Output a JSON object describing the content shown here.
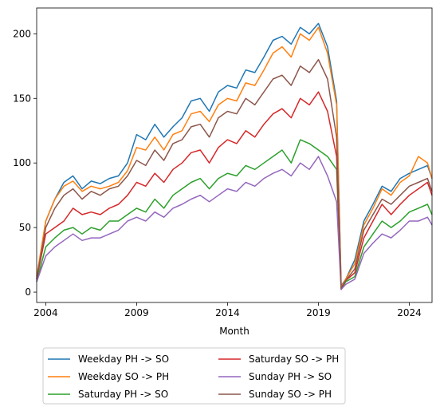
{
  "chart_data": {
    "type": "line",
    "title": "",
    "xlabel": "Month",
    "ylabel": "",
    "xlim": [
      2003.5,
      2025.25
    ],
    "ylim": [
      -8,
      220
    ],
    "x_ticks": [
      {
        "value": 2004,
        "label": "2004"
      },
      {
        "value": 2009,
        "label": "2009"
      },
      {
        "value": 2014,
        "label": "2014"
      },
      {
        "value": 2019,
        "label": "2019"
      },
      {
        "value": 2024,
        "label": "2024"
      }
    ],
    "y_ticks": [
      {
        "value": 0,
        "label": "0"
      },
      {
        "value": 50,
        "label": "50"
      },
      {
        "value": 100,
        "label": "100"
      },
      {
        "value": 150,
        "label": "150"
      },
      {
        "value": 200,
        "label": "200"
      }
    ],
    "legend": {
      "placement": "below-left",
      "columns": 2
    },
    "x": [
      2003.5,
      2004.0,
      2004.5,
      2005.0,
      2005.5,
      2006.0,
      2006.5,
      2007.0,
      2007.5,
      2008.0,
      2008.5,
      2009.0,
      2009.5,
      2010.0,
      2010.5,
      2011.0,
      2011.5,
      2012.0,
      2012.5,
      2013.0,
      2013.5,
      2014.0,
      2014.5,
      2015.0,
      2015.5,
      2016.0,
      2016.5,
      2017.0,
      2017.5,
      2018.0,
      2018.5,
      2019.0,
      2019.5,
      2020.0,
      2020.25,
      2020.5,
      2021.0,
      2021.5,
      2022.0,
      2022.5,
      2023.0,
      2023.5,
      2024.0,
      2024.5,
      2025.0,
      2025.25
    ],
    "series": [
      {
        "name": "Weekday PH -> SO",
        "color": "#1f77b4",
        "values": [
          10,
          55,
          72,
          85,
          90,
          80,
          86,
          84,
          88,
          90,
          100,
          122,
          118,
          130,
          120,
          128,
          135,
          148,
          150,
          140,
          155,
          160,
          158,
          172,
          170,
          182,
          195,
          198,
          192,
          205,
          200,
          208,
          190,
          148,
          5,
          10,
          25,
          55,
          68,
          82,
          78,
          88,
          92,
          95,
          98,
          88
        ]
      },
      {
        "name": "Weekday SO -> PH",
        "color": "#ff7f0e",
        "values": [
          12,
          55,
          72,
          82,
          86,
          78,
          82,
          80,
          82,
          85,
          94,
          112,
          110,
          120,
          110,
          122,
          125,
          138,
          140,
          132,
          145,
          150,
          148,
          162,
          160,
          172,
          185,
          190,
          182,
          200,
          195,
          205,
          185,
          145,
          4,
          10,
          22,
          52,
          65,
          80,
          75,
          85,
          90,
          105,
          100,
          88
        ]
      },
      {
        "name": "Saturday PH -> SO",
        "color": "#2ca02c",
        "values": [
          8,
          35,
          42,
          48,
          50,
          45,
          50,
          48,
          55,
          55,
          60,
          65,
          62,
          72,
          65,
          75,
          80,
          85,
          88,
          80,
          88,
          92,
          90,
          98,
          95,
          100,
          105,
          110,
          100,
          118,
          115,
          110,
          105,
          95,
          2,
          8,
          12,
          35,
          45,
          55,
          50,
          55,
          62,
          65,
          68,
          60
        ]
      },
      {
        "name": "Saturday SO -> PH",
        "color": "#d62728",
        "values": [
          10,
          45,
          50,
          55,
          65,
          60,
          62,
          60,
          65,
          68,
          75,
          85,
          82,
          92,
          85,
          95,
          100,
          108,
          110,
          100,
          112,
          118,
          115,
          125,
          120,
          130,
          138,
          142,
          135,
          150,
          145,
          155,
          140,
          105,
          3,
          9,
          15,
          42,
          55,
          68,
          60,
          68,
          75,
          80,
          85,
          75
        ]
      },
      {
        "name": "Sunday PH -> SO",
        "color": "#9467bd",
        "values": [
          8,
          28,
          35,
          40,
          45,
          40,
          42,
          42,
          45,
          48,
          55,
          58,
          55,
          62,
          58,
          65,
          68,
          72,
          75,
          70,
          75,
          80,
          78,
          85,
          82,
          88,
          92,
          95,
          90,
          100,
          95,
          105,
          90,
          70,
          2,
          6,
          10,
          30,
          38,
          45,
          42,
          48,
          55,
          55,
          58,
          52
        ]
      },
      {
        "name": "Sunday SO -> PH",
        "color": "#8c564b",
        "values": [
          10,
          50,
          65,
          75,
          80,
          72,
          78,
          75,
          80,
          82,
          90,
          102,
          98,
          110,
          102,
          115,
          118,
          128,
          130,
          120,
          135,
          140,
          138,
          150,
          145,
          155,
          165,
          168,
          160,
          175,
          170,
          180,
          165,
          120,
          3,
          9,
          18,
          48,
          60,
          72,
          68,
          75,
          82,
          85,
          88,
          78
        ]
      }
    ]
  }
}
